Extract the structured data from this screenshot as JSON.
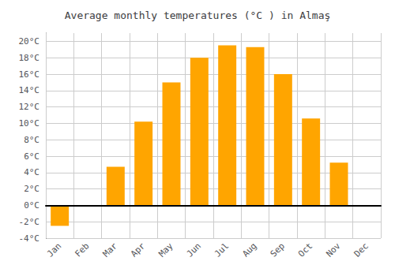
{
  "chart_data": {
    "type": "bar",
    "title": "Average monthly temperatures (°C ) in Almaş",
    "categories": [
      "Jan",
      "Feb",
      "Mar",
      "Apr",
      "May",
      "Jun",
      "Jul",
      "Aug",
      "Sep",
      "Oct",
      "Nov",
      "Dec"
    ],
    "values": [
      -2.5,
      0,
      4.7,
      10.2,
      15.0,
      18.0,
      19.5,
      19.3,
      16.0,
      10.6,
      5.2,
      0
    ],
    "color": "#FFA500",
    "ylim": [
      -4,
      21
    ],
    "yticks": [
      {
        "value": -4,
        "label": "-4°C"
      },
      {
        "value": -2,
        "label": "-2°C"
      },
      {
        "value": 0,
        "label": "0°C"
      },
      {
        "value": 2,
        "label": "2°C"
      },
      {
        "value": 4,
        "label": "4°C"
      },
      {
        "value": 6,
        "label": "6°C"
      },
      {
        "value": 8,
        "label": "8°C"
      },
      {
        "value": 10,
        "label": "10°C"
      },
      {
        "value": 12,
        "label": "12°C"
      },
      {
        "value": 14,
        "label": "14°C"
      },
      {
        "value": 16,
        "label": "16°C"
      },
      {
        "value": 18,
        "label": "18°C"
      },
      {
        "value": 20,
        "label": "20°C"
      }
    ],
    "grid": true
  }
}
